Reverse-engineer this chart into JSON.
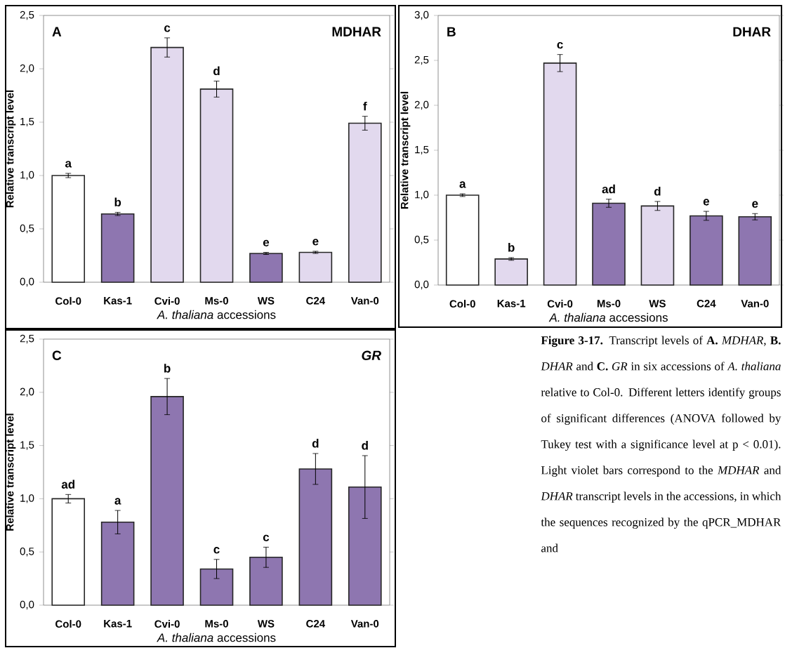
{
  "chart_data": [
    {
      "type": "bar",
      "title": "MDHAR",
      "xlabel": "*A. thaliana* accessions",
      "ylabel": "Relative transcript level",
      "categories": [
        "Col-0",
        "Kas-1",
        "Cvi-0",
        "Ms-0",
        "WS",
        "C24",
        "Van-0"
      ],
      "values": [
        1.0,
        0.64,
        2.2,
        1.81,
        0.27,
        0.28,
        1.49
      ],
      "errors": [
        0.02,
        0.015,
        0.09,
        0.075,
        0.01,
        0.01,
        0.065
      ],
      "colors": [
        "#ffffff",
        "#8e76b0",
        "#e2d9ee",
        "#e2d9ee",
        "#8e76b0",
        "#e2d9ee",
        "#e2d9ee"
      ],
      "ylim": [
        0,
        2.5
      ],
      "yticks": [
        {
          "value": 0,
          "label": "0,0"
        },
        {
          "value": 0.5,
          "label": "0,5"
        },
        {
          "value": 1.0,
          "label": "1,0"
        },
        {
          "value": 1.5,
          "label": "1,5"
        },
        {
          "value": 2.0,
          "label": "2,0"
        },
        {
          "value": 2.5,
          "label": "2,5"
        }
      ],
      "annotations": [
        "A",
        {
          "text": "a",
          "x": "Col-0",
          "y": 1.02
        },
        {
          "text": "b",
          "x": "Kas-1",
          "y": 0.655
        },
        {
          "text": "c",
          "x": "Cvi-0",
          "y": 2.29
        },
        {
          "text": "d",
          "x": "Ms-0",
          "y": 1.885
        },
        {
          "text": "e",
          "x": "WS",
          "y": 0.28
        },
        {
          "text": "e",
          "x": "C24",
          "y": 0.29
        },
        {
          "text": "f",
          "x": "Van-0",
          "y": 1.555
        }
      ]
    },
    {
      "type": "bar",
      "title": "DHAR",
      "xlabel": "*A. thaliana* accessions",
      "ylabel": "Relative transcript level",
      "categories": [
        "Col-0",
        "Kas-1",
        "Cvi-0",
        "Ms-0",
        "WS",
        "C24",
        "Van-0"
      ],
      "values": [
        1.0,
        0.29,
        2.47,
        0.91,
        0.88,
        0.77,
        0.76
      ],
      "errors": [
        0.015,
        0.015,
        0.095,
        0.045,
        0.05,
        0.05,
        0.035
      ],
      "colors": [
        "#ffffff",
        "#e2d9ee",
        "#e2d9ee",
        "#8e76b0",
        "#e2d9ee",
        "#8e76b0",
        "#8e76b0"
      ],
      "ylim": [
        0,
        3.0
      ],
      "yticks": [
        {
          "value": 0,
          "label": "0,0"
        },
        {
          "value": 0.5,
          "label": "0,5"
        },
        {
          "value": 1.0,
          "label": "1,0"
        },
        {
          "value": 1.5,
          "label": "1,5"
        },
        {
          "value": 2.0,
          "label": "2,0"
        },
        {
          "value": 2.5,
          "label": "2,5"
        },
        {
          "value": 3.0,
          "label": "3,0"
        }
      ],
      "annotations": [
        "B",
        {
          "text": "a",
          "x": "Col-0",
          "y": 1.015
        },
        {
          "text": "b",
          "x": "Kas-1",
          "y": 0.305
        },
        {
          "text": "c",
          "x": "Cvi-0",
          "y": 2.565
        },
        {
          "text": "ad",
          "x": "Ms-0",
          "y": 0.955
        },
        {
          "text": "d",
          "x": "WS",
          "y": 0.93
        },
        {
          "text": "e",
          "x": "C24",
          "y": 0.82
        },
        {
          "text": "e",
          "x": "Van-0",
          "y": 0.795
        }
      ]
    },
    {
      "type": "bar",
      "title": "GR",
      "xlabel": "*A. thaliana* accessions",
      "ylabel": "Relative transcript level",
      "categories": [
        "Col-0",
        "Kas-1",
        "Cvi-0",
        "Ms-0",
        "WS",
        "C24",
        "Van-0"
      ],
      "values": [
        1.0,
        0.78,
        1.96,
        0.34,
        0.45,
        1.28,
        1.11
      ],
      "errors": [
        0.04,
        0.11,
        0.17,
        0.09,
        0.095,
        0.145,
        0.295
      ],
      "colors": [
        "#ffffff",
        "#8e76b0",
        "#8e76b0",
        "#8e76b0",
        "#8e76b0",
        "#8e76b0",
        "#8e76b0"
      ],
      "ylim": [
        0,
        2.5
      ],
      "yticks": [
        {
          "value": 0,
          "label": "0,0"
        },
        {
          "value": 0.5,
          "label": "0,5"
        },
        {
          "value": 1.0,
          "label": "1,0"
        },
        {
          "value": 1.5,
          "label": "1,5"
        },
        {
          "value": 2.0,
          "label": "2,0"
        },
        {
          "value": 2.5,
          "label": "2,5"
        }
      ],
      "annotations": [
        "C",
        {
          "text": "ad",
          "x": "Col-0",
          "y": 1.04
        },
        {
          "text": "a",
          "x": "Kas-1",
          "y": 0.89
        },
        {
          "text": "b",
          "x": "Cvi-0",
          "y": 2.13
        },
        {
          "text": "c",
          "x": "Ms-0",
          "y": 0.43
        },
        {
          "text": "c",
          "x": "WS",
          "y": 0.545
        },
        {
          "text": "d",
          "x": "C24",
          "y": 1.425
        },
        {
          "text": "d",
          "x": "Van-0",
          "y": 1.405
        }
      ]
    },
    {
      "type": "other",
      "annotations": [
        "**Figure 3-17.** Transcript levels of **A.** *MDHAR*, **B.** *DHAR* and **C.** *GR* in six accessions of *A. thaliana* relative to Col-0. Different letters identify groups of significant differences (ANOVA followed by Tukey test with a significance level at p < 0.01). Light violet bars correspond to the *MDHAR* and *DHAR* transcript levels in the accessions, in which the sequences recognized by the qPCR_MDHAR and"
      ]
    }
  ]
}
